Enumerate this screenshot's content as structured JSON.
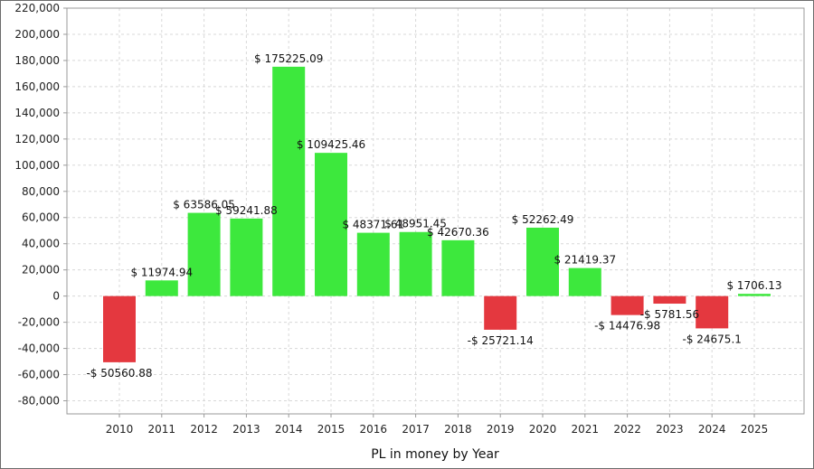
{
  "chart_data": {
    "type": "bar",
    "xlabel": "PL in money by Year",
    "ylabel": "",
    "categories": [
      "2010",
      "2011",
      "2012",
      "2013",
      "2014",
      "2015",
      "2016",
      "2017",
      "2018",
      "2019",
      "2020",
      "2021",
      "2022",
      "2023",
      "2024",
      "2025"
    ],
    "values": [
      -50560.88,
      11974.94,
      63586.05,
      59241.88,
      175225.09,
      109425.46,
      48371.61,
      48951.45,
      42670.36,
      -25721.14,
      52262.49,
      21419.37,
      -14476.98,
      -5781.56,
      -24675.1,
      1706.13
    ],
    "data_labels": [
      "-$ 50560.88",
      "$ 11974.94",
      "$ 63586.05",
      "$ 59241.88",
      "$ 175225.09",
      "$ 109425.46",
      "$ 48371.61",
      "$ 48951.45",
      "$ 42670.36",
      "-$ 25721.14",
      "$ 52262.49",
      "$ 21419.37",
      "-$ 14476.98",
      "-$ 5781.56",
      "-$ 24675.1",
      "$ 1706.13"
    ],
    "ylim": [
      -90000,
      220000
    ],
    "yticks": [
      220000,
      200000,
      180000,
      160000,
      140000,
      120000,
      100000,
      80000,
      60000,
      40000,
      20000,
      0,
      -20000,
      -40000,
      -60000,
      -80000
    ],
    "ytick_labels": [
      "220,000",
      "200,000",
      "180,000",
      "160,000",
      "140,000",
      "120,000",
      "100,000",
      "80,000",
      "60,000",
      "40,000",
      "20,000",
      "0",
      "-20,000",
      "-40,000",
      "-60,000",
      "-80,000"
    ],
    "grid": true,
    "colors": {
      "positive": "#3de83d",
      "negative": "#e4383f",
      "grid": "#d8d8d8",
      "axis": "#9a9a9a"
    }
  }
}
